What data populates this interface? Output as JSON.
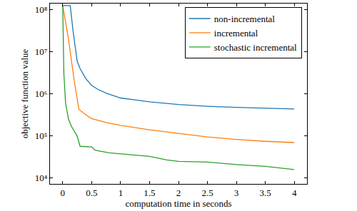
{
  "chart_data": {
    "type": "line",
    "x_label": "computation time in seconds",
    "y_label": "objective function value",
    "log": "y",
    "grid": false,
    "legend": "top right",
    "xlim": [
      -0.22,
      4.22
    ],
    "xticks": [
      0,
      0.5,
      1,
      1.5,
      2,
      2.5,
      3,
      3.5,
      4
    ],
    "ylim": [
      7300,
      140000000
    ],
    "yticks": [
      {
        "value": 10000,
        "label": "10⁴"
      },
      {
        "value": 100000,
        "label": "10⁵"
      },
      {
        "value": 1000000,
        "label": "10⁶"
      },
      {
        "value": 10000000,
        "label": "10⁷"
      },
      {
        "value": 100000000,
        "label": "10⁸"
      }
    ],
    "series": [
      {
        "name": "non-incremental",
        "color": "#1f77b4",
        "x": [
          0,
          0.13,
          0.18,
          0.25,
          0.3,
          0.4,
          0.5,
          0.6,
          0.75,
          1,
          1.25,
          1.5,
          2,
          2.5,
          3,
          3.5,
          4
        ],
        "values": [
          125000000,
          125000000,
          30000000,
          6000000,
          4000000,
          2300000,
          1600000,
          1300000,
          1050000,
          800000,
          720000,
          650000,
          560000,
          510000,
          480000,
          460000,
          440000
        ]
      },
      {
        "name": "incremental",
        "color": "#ff7f0e",
        "x": [
          0,
          0.1,
          0.2,
          0.28,
          0.4,
          0.5,
          0.75,
          1,
          1.5,
          2,
          2.5,
          3,
          3.5,
          4
        ],
        "values": [
          125000000,
          20000000,
          2000000,
          430000,
          320000,
          260000,
          210000,
          180000,
          140000,
          115000,
          95000,
          83000,
          75000,
          70000
        ]
      },
      {
        "name": "stochastic incremental",
        "color": "#2ca02c",
        "x": [
          0,
          0.02,
          0.05,
          0.1,
          0.15,
          0.2,
          0.25,
          0.3,
          0.5,
          0.55,
          0.6,
          0.8,
          1,
          1.5,
          1.8,
          2,
          2.5,
          3,
          3.5,
          4
        ],
        "values": [
          125000000,
          3000000,
          600000,
          250000,
          170000,
          130000,
          100000,
          57000,
          55000,
          47000,
          45000,
          40000,
          38000,
          33000,
          27000,
          25000,
          24000,
          21000,
          19000,
          16000
        ]
      }
    ]
  }
}
